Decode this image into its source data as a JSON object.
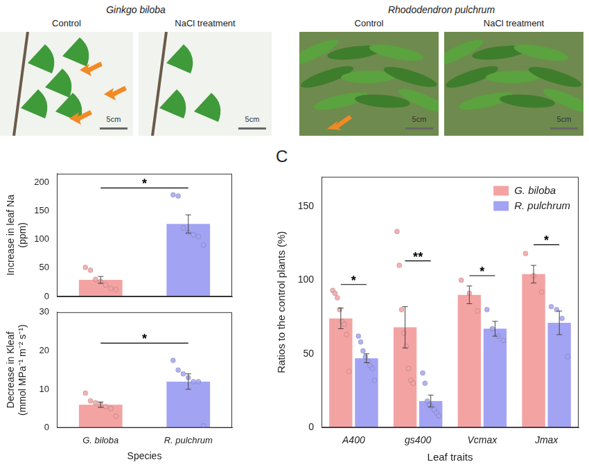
{
  "photos": [
    {
      "species": "Ginkgo biloba",
      "images": [
        {
          "label": "Control",
          "scale": "5cm"
        },
        {
          "label": "NaCl treatment",
          "scale": "5cm"
        }
      ]
    },
    {
      "species": "Rhododendron pulchrum",
      "images": [
        {
          "label": "Control",
          "scale": "5cm"
        },
        {
          "label": "NaCl treatment",
          "scale": "5cm"
        }
      ]
    }
  ],
  "chart_data": [
    {
      "type": "bar",
      "y_label": "Increase in leaf Na (ppm)",
      "categories": [
        "G. biloba",
        "R. pulchrum"
      ],
      "values": [
        29,
        127
      ],
      "errors": [
        6,
        16
      ],
      "points": [
        [
          51,
          46,
          30,
          26,
          20,
          14,
          12
        ],
        [
          178,
          176,
          120,
          112,
          108,
          105,
          90
        ]
      ],
      "colors": [
        "#f4a3a3",
        "#a3a3f4"
      ],
      "ylim": [
        0,
        215
      ],
      "yticks": [
        0,
        50,
        100,
        150,
        200
      ],
      "tick_labels": "y",
      "grid": false,
      "annotations": [
        {
          "between": [
            "G. biloba",
            "R. pulchrum"
          ],
          "y": 190,
          "label": "*"
        }
      ]
    },
    {
      "type": "bar",
      "x_label": "Species",
      "y_label": "Decrease in Kleaf (mmol MPa⁻¹ m⁻² s⁻¹)",
      "categories": [
        "G. biloba",
        "R. pulchrum"
      ],
      "values": [
        6,
        12
      ],
      "errors": [
        0.7,
        2
      ],
      "points": [
        [
          9,
          7,
          6.5,
          6,
          5.5,
          5,
          3
        ],
        [
          17.5,
          15,
          14,
          13,
          12,
          12,
          0.5
        ]
      ],
      "colors": [
        "#f4a3a3",
        "#a3a3f4"
      ],
      "ylim": [
        0,
        30
      ],
      "yticks": [
        0,
        10,
        20,
        30
      ],
      "grid": false,
      "annotations": [
        {
          "between": [
            "G. biloba",
            "R. pulchrum"
          ],
          "y": 22,
          "label": "*"
        }
      ]
    },
    {
      "type": "bar",
      "panel": "C",
      "x_label": "Leaf traits",
      "y_label": "Ratios to the control plants (%)",
      "categories": [
        "A400",
        "gs400",
        "Vcmax",
        "Jmax"
      ],
      "series": [
        {
          "name": "G. biloba",
          "color": "#f4a3a3",
          "values": [
            74,
            68,
            90,
            104
          ],
          "errors": [
            7,
            14,
            6,
            6
          ],
          "points": [
            [
              93,
              91,
              88,
              80,
              72,
              70,
              63,
              38
            ],
            [
              133,
              110,
              80,
              64,
              55,
              40,
              32,
              30
            ],
            [
              100,
              91,
              79
            ],
            [
              118,
              103,
              92
            ]
          ]
        },
        {
          "name": "R. pulchrum",
          "color": "#a3a3f4",
          "values": [
            47,
            18,
            67,
            71
          ],
          "errors": [
            3,
            4,
            5,
            8
          ],
          "points": [
            [
              62,
              58,
              52,
              48,
              45,
              42,
              40,
              32
            ],
            [
              37,
              30,
              18,
              15,
              14,
              12,
              10,
              8
            ],
            [
              80,
              67,
              62,
              59
            ],
            [
              82,
              80,
              74,
              48
            ]
          ]
        }
      ],
      "ylim": [
        0,
        170
      ],
      "yticks": [
        0,
        50,
        100,
        150
      ],
      "legend": "top-right",
      "grid": false,
      "annotations": [
        {
          "category": "A400",
          "y": 97,
          "label": "*"
        },
        {
          "category": "gs400",
          "y": 113,
          "label": "**"
        },
        {
          "category": "Vcmax",
          "y": 103,
          "label": "*"
        },
        {
          "category": "Jmax",
          "y": 124,
          "label": "*"
        }
      ]
    }
  ]
}
